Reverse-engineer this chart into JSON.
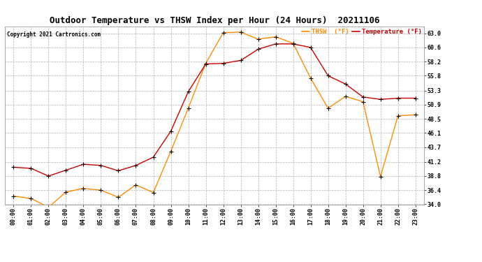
{
  "title": "Outdoor Temperature vs THSW Index per Hour (24 Hours)  20211106",
  "copyright": "Copyright 2021 Cartronics.com",
  "legend_thsw": "THSW  (°F)",
  "legend_temp": "Temperature (°F)",
  "x_labels": [
    "00:00",
    "01:00",
    "02:00",
    "03:00",
    "04:00",
    "05:00",
    "06:00",
    "07:00",
    "08:00",
    "09:00",
    "10:00",
    "11:00",
    "12:00",
    "13:00",
    "14:00",
    "15:00",
    "16:00",
    "17:00",
    "18:00",
    "19:00",
    "20:00",
    "21:00",
    "22:00",
    "23:00"
  ],
  "temperature": [
    40.3,
    40.1,
    38.8,
    39.8,
    40.8,
    40.6,
    39.7,
    40.6,
    42.0,
    46.4,
    53.1,
    57.8,
    57.9,
    58.4,
    60.3,
    61.2,
    61.2,
    60.6,
    55.8,
    54.4,
    52.2,
    51.8,
    52.0,
    52.0
  ],
  "thsw": [
    35.4,
    35.0,
    33.5,
    36.1,
    36.7,
    36.4,
    35.2,
    37.3,
    36.0,
    43.0,
    50.3,
    57.9,
    63.1,
    63.2,
    62.0,
    62.4,
    61.3,
    55.4,
    50.3,
    52.3,
    51.4,
    38.7,
    49.0,
    49.2
  ],
  "thsw_color": "#FF8C00",
  "temp_color": "#CC0000",
  "marker_color": "black",
  "bg_color": "#FFFFFF",
  "grid_color": "#AAAAAA",
  "title_color": "black",
  "ylim_min": 34.0,
  "ylim_max": 64.2,
  "yticks": [
    34.0,
    36.4,
    38.8,
    41.2,
    43.7,
    46.1,
    48.5,
    50.9,
    53.3,
    55.8,
    58.2,
    60.6,
    63.0
  ],
  "title_fontsize": 9,
  "tick_fontsize": 6,
  "copyright_fontsize": 5.5,
  "legend_fontsize": 6.5,
  "line_width": 1.0,
  "marker_size": 4
}
